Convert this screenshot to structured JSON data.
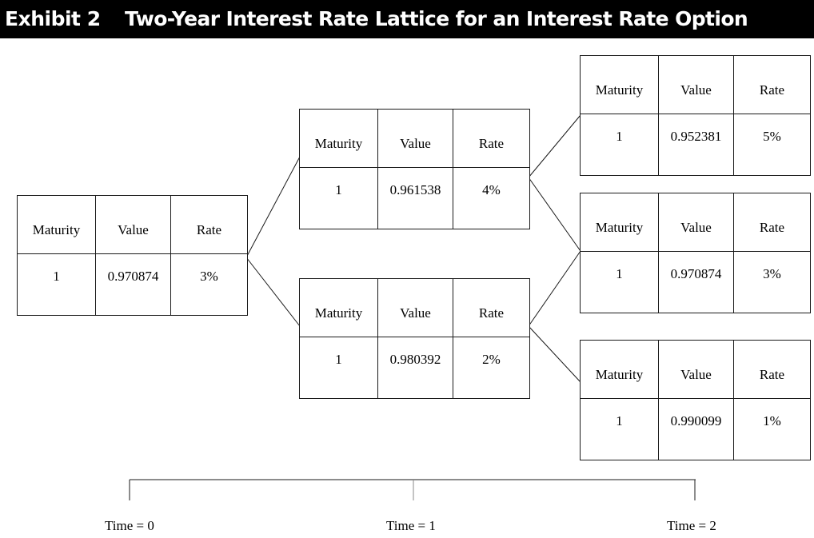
{
  "header": {
    "exhibit": "Exhibit 2",
    "title": "Two-Year Interest Rate Lattice for an Interest Rate Option"
  },
  "nodes": {
    "t0": {
      "maturity": "1",
      "value": "0.970874",
      "rate": "3%"
    },
    "t1_up": {
      "maturity": "1",
      "value": "0.961538",
      "rate": "4%"
    },
    "t1_down": {
      "maturity": "1",
      "value": "0.980392",
      "rate": "2%"
    },
    "t2_uu": {
      "maturity": "1",
      "value": "0.952381",
      "rate": "5%"
    },
    "t2_ud": {
      "maturity": "1",
      "value": "0.970874",
      "rate": "3%"
    },
    "t2_dd": {
      "maturity": "1",
      "value": "0.990099",
      "rate": "1%"
    }
  },
  "columns": {
    "maturity": "Maturity",
    "value": "Value",
    "rate": "Rate"
  },
  "timeline": {
    "t0": "Time = 0",
    "t1": "Time = 1",
    "t2": "Time = 2"
  }
}
